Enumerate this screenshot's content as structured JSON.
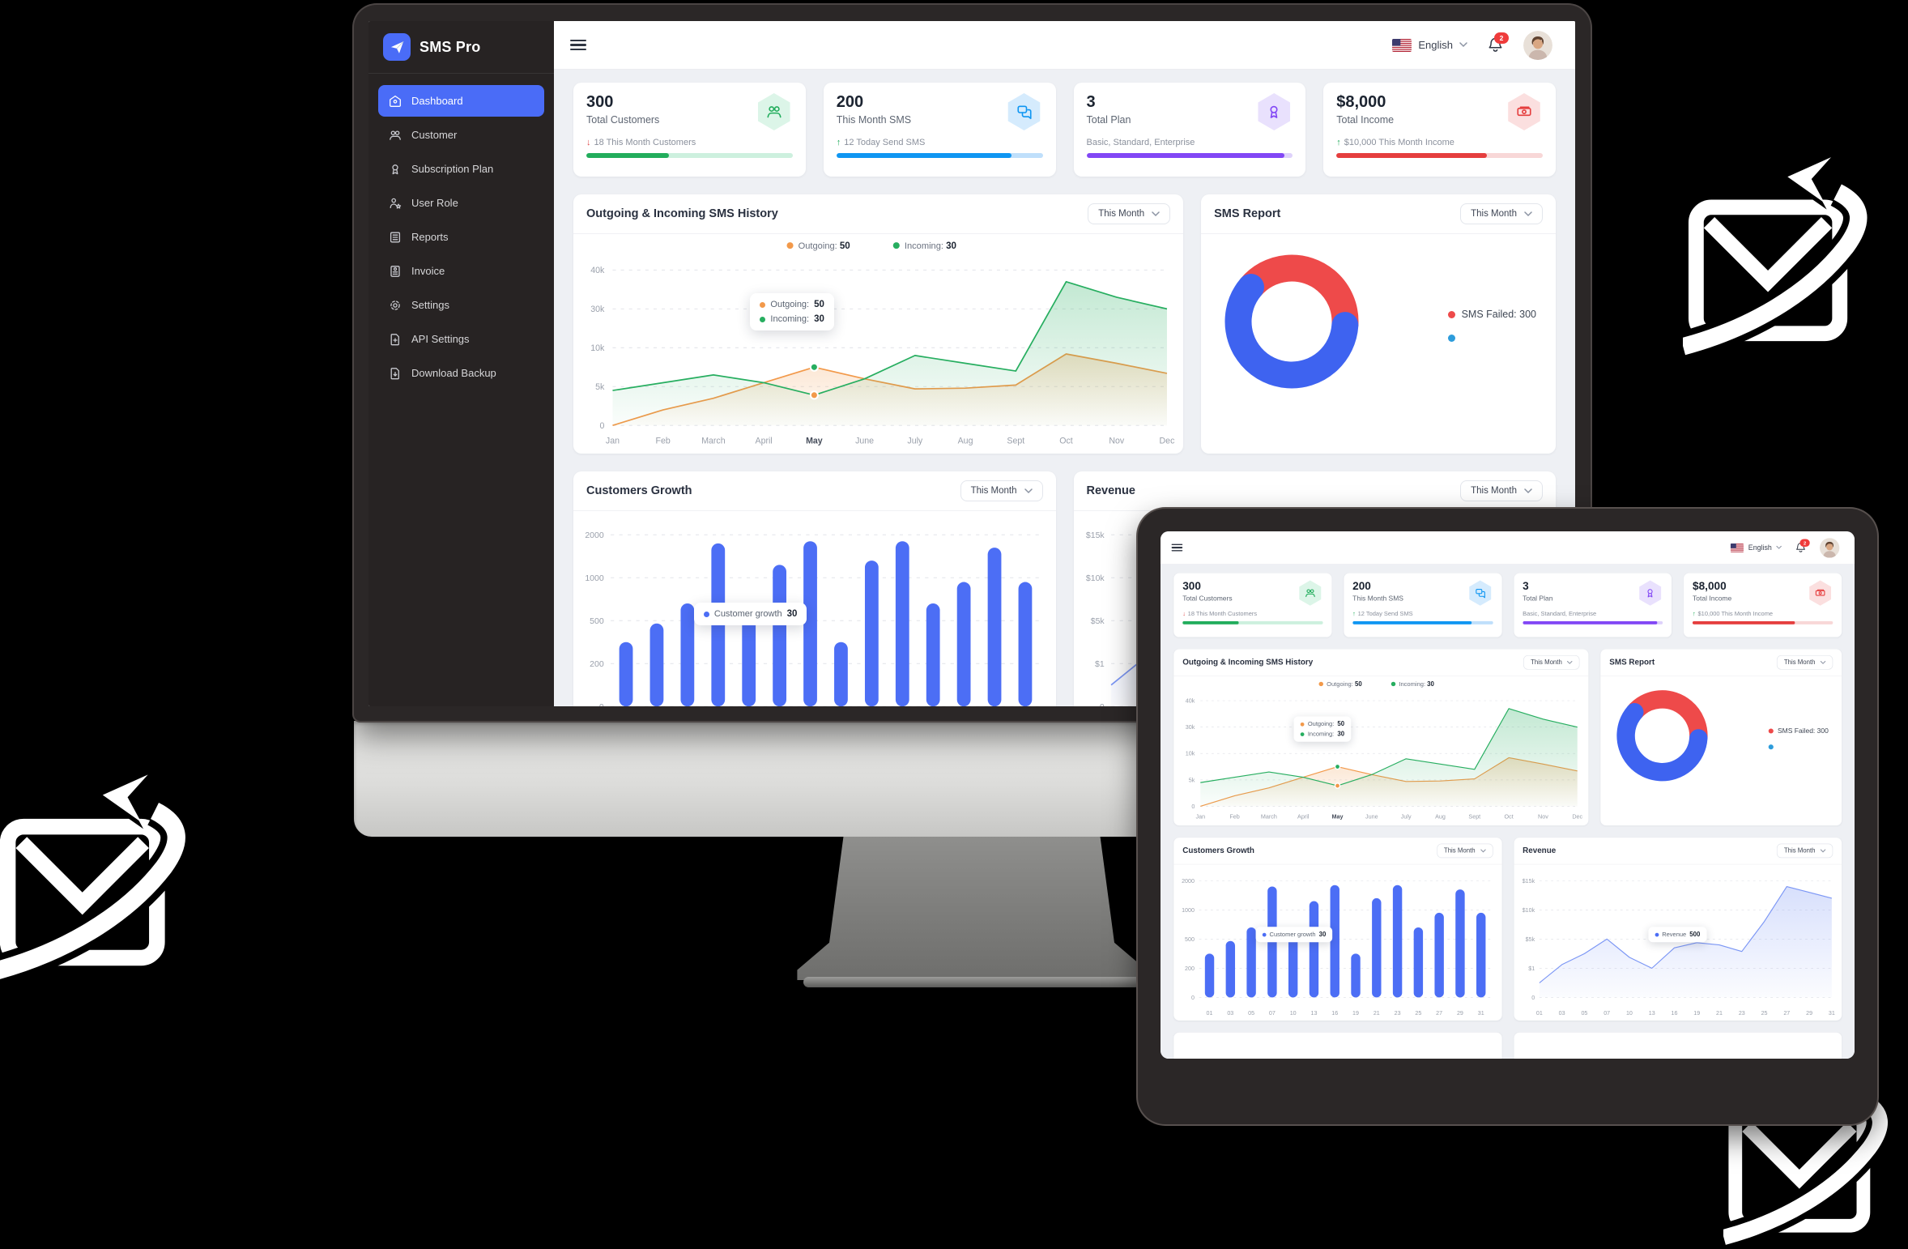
{
  "brand": {
    "name": "SMS Pro",
    "logo_icon": "paper-plane-icon",
    "logo_color": "#4a6cf7"
  },
  "header": {
    "language": "English",
    "notification_count": "2",
    "flag_icon": "us-flag-icon",
    "bell_icon": "bell-icon",
    "menu_icon": "menu-icon"
  },
  "sidebar": {
    "items": [
      {
        "label": "Dashboard",
        "icon": "dashboard-icon",
        "active": true
      },
      {
        "label": "Customer",
        "icon": "customer-icon",
        "active": false
      },
      {
        "label": "Subscription Plan",
        "icon": "subscription-plan-icon",
        "active": false
      },
      {
        "label": "User Role",
        "icon": "user-role-icon",
        "active": false
      },
      {
        "label": "Reports",
        "icon": "reports-icon",
        "active": false
      },
      {
        "label": "Invoice",
        "icon": "invoice-icon",
        "active": false
      },
      {
        "label": "Settings",
        "icon": "settings-icon",
        "active": false
      },
      {
        "label": "API Settings",
        "icon": "api-settings-icon",
        "active": false
      },
      {
        "label": "Download Backup",
        "icon": "download-backup-icon",
        "active": false
      }
    ]
  },
  "controls": {
    "period_label": "This Month"
  },
  "stat_cards": [
    {
      "value": "300",
      "label": "Total Customers",
      "delta_dir": "down",
      "delta_text": "18 This Month Customers",
      "icon": "users-icon",
      "accent": "#22ad5c",
      "icon_bg": "#dcf5e8",
      "track": "#cdf0de",
      "progress": 40
    },
    {
      "value": "200",
      "label": "This Month SMS",
      "delta_dir": "up",
      "delta_text": "12 Today Send SMS",
      "icon": "chat-icon",
      "accent": "#0f96f2",
      "icon_bg": "#d5ebfd",
      "track": "#bfdffb",
      "progress": 85
    },
    {
      "value": "3",
      "label": "Total Plan",
      "delta_dir": "none",
      "delta_text": "Basic, Standard, Enterprise",
      "icon": "badge-icon",
      "accent": "#8247f5",
      "icon_bg": "#e9e1fd",
      "track": "#ded2fb",
      "progress": 96
    },
    {
      "value": "$8,000",
      "label": "Total Income",
      "delta_dir": "up",
      "delta_text": "$10,000 This Month Income",
      "icon": "money-icon",
      "accent": "#e53e3e",
      "icon_bg": "#fbdfdf",
      "track": "#f8d7d7",
      "progress": 73
    }
  ],
  "delta_colors": {
    "up": "#22ad5c",
    "down": "#e14b4b"
  },
  "chart_data": [
    {
      "type": "line",
      "title": "Outgoing & Incoming SMS History",
      "categories": [
        "Jan",
        "Feb",
        "March",
        "April",
        "May",
        "June",
        "July",
        "Aug",
        "Sept",
        "Oct",
        "Nov",
        "Dec"
      ],
      "highlight_category": "May",
      "y_ticks": [
        "0",
        "5k",
        "10k",
        "30k",
        "40k"
      ],
      "y_scale_breakpoints_k": [
        0,
        5,
        10,
        30,
        40
      ],
      "grid": "dashed",
      "legend_position": "top-center",
      "series": [
        {
          "name": "Outgoing",
          "legend_value": "50",
          "color": "#f2994a",
          "values_k": [
            0,
            2,
            3.5,
            5.5,
            7.5,
            6,
            4.7,
            4.8,
            5.2,
            9.2,
            8,
            6.7
          ]
        },
        {
          "name": "Incoming",
          "legend_value": "30",
          "color": "#27ae60",
          "values_k": [
            4.5,
            5.5,
            6.5,
            5.5,
            3.9,
            6,
            9,
            8,
            7,
            37,
            33,
            30
          ]
        }
      ],
      "markers": [
        {
          "category": "May",
          "value_k": 7.5,
          "color": "#27ae60"
        },
        {
          "category": "May",
          "value_k": 3.9,
          "color": "#f2994a"
        }
      ],
      "tooltip": {
        "rows": [
          {
            "label": "Outgoing:",
            "value": "50",
            "color": "#f2994a"
          },
          {
            "label": "Incoming:",
            "value": "30",
            "color": "#27ae60"
          }
        ]
      }
    },
    {
      "type": "donut",
      "title": "SMS Report",
      "slices": [
        {
          "label": "SMS Failed: 300",
          "percent": 40,
          "color": "#ee4a4a"
        },
        {
          "label": "",
          "percent": 60,
          "color": "#3e63f0"
        }
      ],
      "legend": [
        {
          "label": "SMS Failed: 300",
          "color": "#ee4a4a"
        },
        {
          "label": "",
          "color": "#2d9cdb"
        }
      ]
    },
    {
      "type": "bar",
      "title": "Customers Growth",
      "categories": [
        "01",
        "03",
        "05",
        "07",
        "10",
        "13",
        "16",
        "19",
        "21",
        "23",
        "25",
        "27",
        "29",
        "31"
      ],
      "y_ticks": [
        "0",
        "200",
        "500",
        "1000",
        "2000"
      ],
      "y_scale_breakpoints": [
        0,
        200,
        500,
        1000,
        2000
      ],
      "values": [
        350,
        480,
        700,
        1800,
        520,
        1300,
        1850,
        350,
        1400,
        1850,
        700,
        950,
        1700,
        950
      ],
      "color": "#4c6ef5",
      "tooltip": {
        "label": "Customer growth",
        "value": "30",
        "color": "#4c6ef5"
      }
    },
    {
      "type": "area",
      "title": "Revenue",
      "categories": [
        "01",
        "03",
        "05",
        "07",
        "10",
        "13",
        "16",
        "19",
        "21",
        "23",
        "25",
        "27",
        "29",
        "31"
      ],
      "y_ticks": [
        "0",
        "$1",
        "$5k",
        "$10k",
        "$15k"
      ],
      "y_scale_breakpoints_k": [
        0,
        1,
        5,
        10,
        15
      ],
      "values_k": [
        0.5,
        1.5,
        3,
        5,
        2.5,
        1,
        3.8,
        4.5,
        4.2,
        3.3,
        8,
        14,
        13,
        12
      ],
      "color": "#7b96f5",
      "tooltip": {
        "label": "Revenue",
        "value": "500",
        "color": "#4c6ef5"
      }
    }
  ],
  "decorations": {
    "icon": "send-mail-icon",
    "color": "#ffffff"
  }
}
